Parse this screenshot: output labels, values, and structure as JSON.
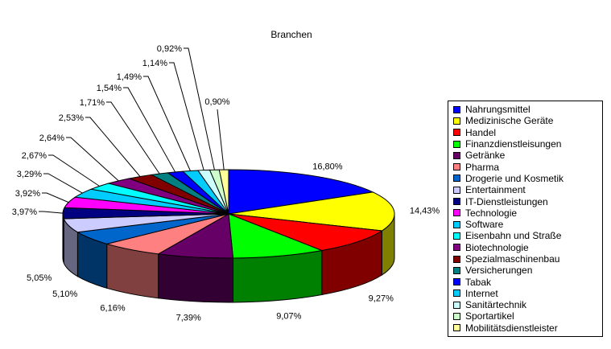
{
  "chart_data": {
    "type": "pie",
    "style": "3d-pie",
    "title": "Branchen",
    "legend_position": "right",
    "slices": [
      {
        "label": "Nahrungsmittel",
        "value": 16.8,
        "value_label": "16,80%",
        "color": "#0000ff"
      },
      {
        "label": "Medizinische Geräte",
        "value": 14.43,
        "value_label": "14,43%",
        "color": "#ffff00"
      },
      {
        "label": "Handel",
        "value": 9.27,
        "value_label": "9,27%",
        "color": "#ff0000"
      },
      {
        "label": "Finanzdienstleisungen",
        "value": 9.07,
        "value_label": "9,07%",
        "color": "#00ff00"
      },
      {
        "label": "Getränke",
        "value": 7.39,
        "value_label": "7,39%",
        "color": "#660066"
      },
      {
        "label": "Pharma",
        "value": 6.16,
        "value_label": "6,16%",
        "color": "#ff8080"
      },
      {
        "label": "Drogerie und Kosmetik",
        "value": 5.1,
        "value_label": "5,10%",
        "color": "#0066cc"
      },
      {
        "label": "Entertainment",
        "value": 5.05,
        "value_label": "5,05%",
        "color": "#ccccff"
      },
      {
        "label": "IT-Dienstleistungen",
        "value": 3.97,
        "value_label": "3,97%",
        "color": "#000080"
      },
      {
        "label": "Technologie",
        "value": 3.92,
        "value_label": "3,92%",
        "color": "#ff00ff"
      },
      {
        "label": "Software",
        "value": 3.29,
        "value_label": "3,29%",
        "color": "#00ccff"
      },
      {
        "label": "Eisenbahn und Straße",
        "value": 2.67,
        "value_label": "2,67%",
        "color": "#00ffff"
      },
      {
        "label": "Biotechnologie",
        "value": 2.64,
        "value_label": "2,64%",
        "color": "#800080"
      },
      {
        "label": "Spezialmaschinenbau",
        "value": 2.53,
        "value_label": "2,53%",
        "color": "#800000"
      },
      {
        "label": "Versicherungen",
        "value": 1.71,
        "value_label": "1,71%",
        "color": "#008080"
      },
      {
        "label": "Tabak",
        "value": 1.54,
        "value_label": "1,54%",
        "color": "#0000ff"
      },
      {
        "label": "Internet",
        "value": 1.49,
        "value_label": "1,49%",
        "color": "#00ccff"
      },
      {
        "label": "Sanitärtechnik",
        "value": 1.14,
        "value_label": "1,14%",
        "color": "#ccffff"
      },
      {
        "label": "Sportartikel",
        "value": 0.92,
        "value_label": "0,92%",
        "color": "#ccffcc"
      },
      {
        "label": "Mobilitätsdienstleister",
        "value": 0.9,
        "value_label": "0,90%",
        "color": "#ffff99"
      }
    ]
  }
}
